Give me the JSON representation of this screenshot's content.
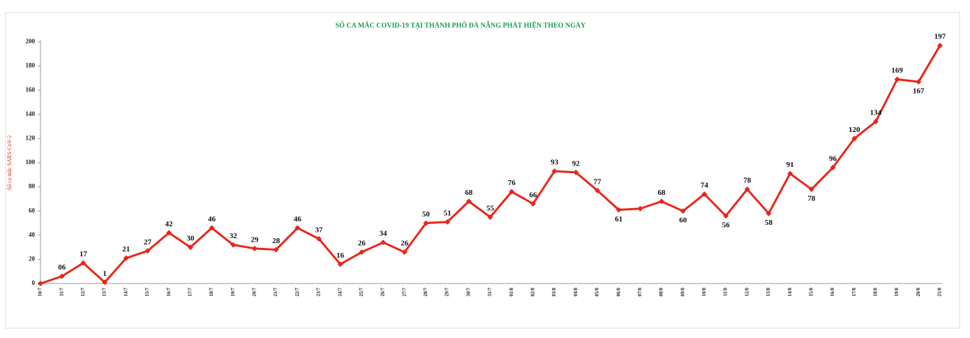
{
  "chart_data": {
    "type": "line",
    "title": "SỐ CA MẮC COVID-19 TẠI THÀNH PHỐ ĐÀ NẴNG PHÁT HIỆN THEO NGÀY",
    "y_label": "Số ca mắc SARS-CoV-2",
    "categories": [
      "10/7",
      "11/7",
      "12/7",
      "13/7",
      "14/7",
      "15/7",
      "16/7",
      "17/7",
      "18/7",
      "19/7",
      "20/7",
      "21/7",
      "22/7",
      "23/7",
      "24/7",
      "25/7",
      "26/7",
      "27/7",
      "28/7",
      "29/7",
      "30/7",
      "31/7",
      "01/8",
      "02/8",
      "03/8",
      "04/8",
      "05/8",
      "06/8",
      "07/8",
      "08/8",
      "09/8",
      "10/8",
      "11/8",
      "12/8",
      "13/8",
      "14/8",
      "15/8",
      "16/8",
      "17/8",
      "18/8",
      "19/8",
      "20/8",
      "21/8"
    ],
    "values": [
      0,
      6,
      17,
      1,
      21,
      27,
      42,
      30,
      46,
      32,
      29,
      28,
      46,
      37,
      16,
      26,
      34,
      26,
      50,
      51,
      68,
      55,
      76,
      66,
      93,
      92,
      77,
      61,
      62,
      68,
      60,
      74,
      56,
      78,
      58,
      91,
      78,
      96,
      120,
      134,
      169,
      167,
      197
    ],
    "value_labels": [
      null,
      "06",
      "17",
      "1",
      "21",
      "27",
      "42",
      "30",
      "46",
      "32",
      "29",
      "28",
      "46",
      "37",
      "16",
      "26",
      "34",
      "26",
      "50",
      "51",
      "68",
      "55",
      "76",
      "66",
      "93",
      "92",
      "77",
      "61",
      null,
      "68",
      "60",
      "74",
      "56",
      "78",
      "58",
      "91",
      "78",
      "96",
      "120",
      "134",
      "169",
      "167",
      "197"
    ],
    "color": "#e8261a",
    "ylim": [
      0,
      200
    ],
    "yticks": [
      0,
      20,
      40,
      60,
      80,
      100,
      120,
      140,
      160,
      180,
      200
    ]
  }
}
